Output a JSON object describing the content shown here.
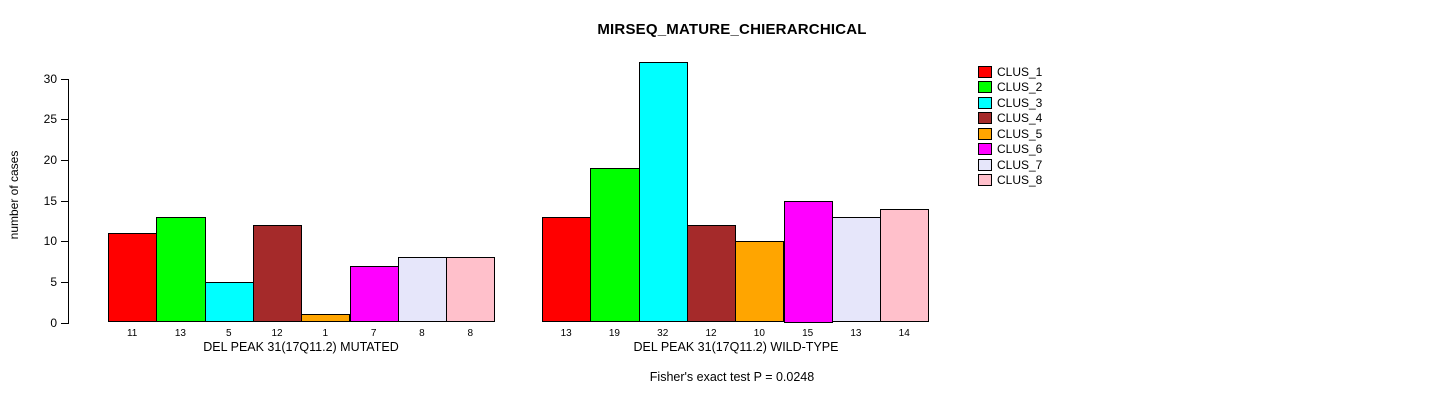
{
  "chart_data": {
    "type": "bar",
    "title": "MIRSEQ_MATURE_CHIERARCHICAL",
    "ylabel": "number of cases",
    "xlabel": "",
    "ylim": [
      0,
      30
    ],
    "yticks": [
      0,
      5,
      10,
      15,
      20,
      25,
      30
    ],
    "grid": false,
    "legend_position": "right",
    "bar_value_labels_shown": true,
    "legend": [
      {
        "label": "CLUS_1",
        "color": "#FF0000"
      },
      {
        "label": "CLUS_2",
        "color": "#00FF00"
      },
      {
        "label": "CLUS_3",
        "color": "#00FFFF"
      },
      {
        "label": "CLUS_4",
        "color": "#A52A2A"
      },
      {
        "label": "CLUS_5",
        "color": "#FFA500"
      },
      {
        "label": "CLUS_6",
        "color": "#FF00FF"
      },
      {
        "label": "CLUS_7",
        "color": "#E6E6FA"
      },
      {
        "label": "CLUS_8",
        "color": "#FFC0CB"
      }
    ],
    "groups": [
      {
        "label": "DEL PEAK 31(17Q11.2) MUTATED",
        "values": [
          11,
          13,
          5,
          12,
          1,
          7,
          8,
          8
        ]
      },
      {
        "label": "DEL PEAK 31(17Q11.2) WILD-TYPE",
        "values": [
          13,
          19,
          32,
          12,
          10,
          15,
          13,
          14
        ]
      }
    ],
    "annotation": "Fisher's exact test P = 0.0248"
  }
}
